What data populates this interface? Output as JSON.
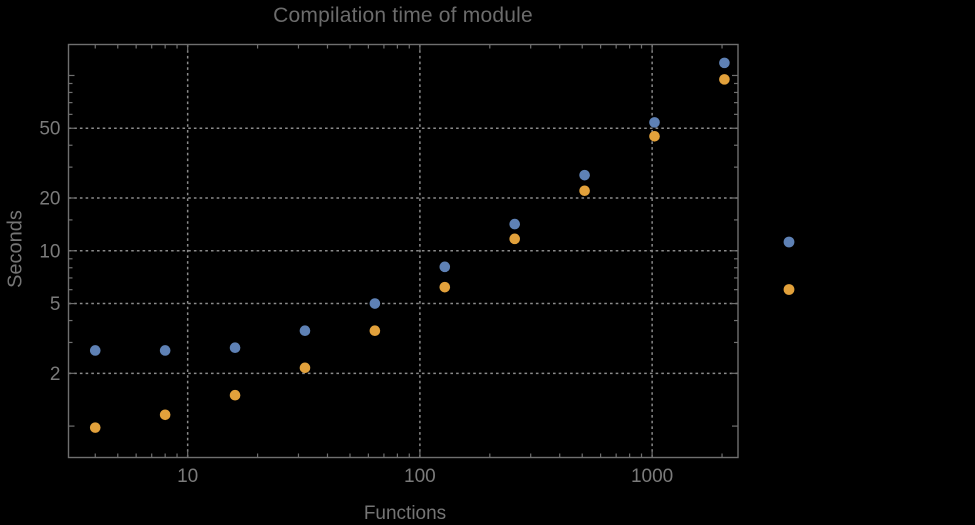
{
  "title": "Compilation time of module",
  "colors": {
    "background": "#000000",
    "frame": "#6f6f6f",
    "grid": "#8b8b8b",
    "tick_text": "#7b7b7b",
    "title_text": "#6c6c6c",
    "series_blue": "#5e81b5",
    "series_orange": "#e2a13b"
  },
  "chart_data": {
    "type": "scatter",
    "title": "Compilation time of module",
    "xlabel": "Functions",
    "ylabel": "Seconds",
    "xscale": "log",
    "yscale": "log",
    "xlim": [
      3.068,
      2343
    ],
    "ylim": [
      0.662,
      150.2
    ],
    "grid": "dotted",
    "x_ticks_labeled": [
      10,
      100,
      1000
    ],
    "y_ticks_labeled": [
      2,
      5,
      10,
      20,
      50
    ],
    "y_ticks_unlabeled_major": [
      1,
      100
    ],
    "x_minor_ticks": [
      4,
      5,
      6,
      7,
      8,
      9,
      20,
      30,
      40,
      50,
      60,
      70,
      80,
      90,
      200,
      300,
      400,
      500,
      600,
      700,
      800,
      900,
      2000
    ],
    "y_minor_ticks": [
      3,
      4,
      6,
      7,
      8,
      9,
      15,
      30,
      40,
      60,
      70,
      80,
      90
    ],
    "x_gridlines": [
      10,
      100,
      1000
    ],
    "y_gridlines": [
      2,
      5,
      10,
      20,
      50
    ],
    "series": [
      {
        "name": "series-1-blue",
        "color": "#5e81b5",
        "x": [
          4,
          8,
          16,
          32,
          64,
          128,
          256,
          512,
          1024,
          2048
        ],
        "y": [
          2.7,
          2.7,
          2.8,
          3.5,
          5.0,
          8.1,
          14.2,
          27,
          54,
          118
        ]
      },
      {
        "name": "series-2-orange",
        "color": "#e2a13b",
        "x": [
          4,
          8,
          16,
          32,
          64,
          128,
          256,
          512,
          1024,
          2048
        ],
        "y": [
          0.98,
          1.16,
          1.5,
          2.15,
          3.5,
          6.2,
          11.7,
          22,
          45,
          95
        ]
      }
    ],
    "legend": {
      "position": "right-outside",
      "markers": [
        {
          "name": "legend-marker-blue",
          "color": "#5e81b5",
          "label": ""
        },
        {
          "name": "legend-marker-orange",
          "color": "#e2a13b",
          "label": ""
        }
      ]
    }
  }
}
